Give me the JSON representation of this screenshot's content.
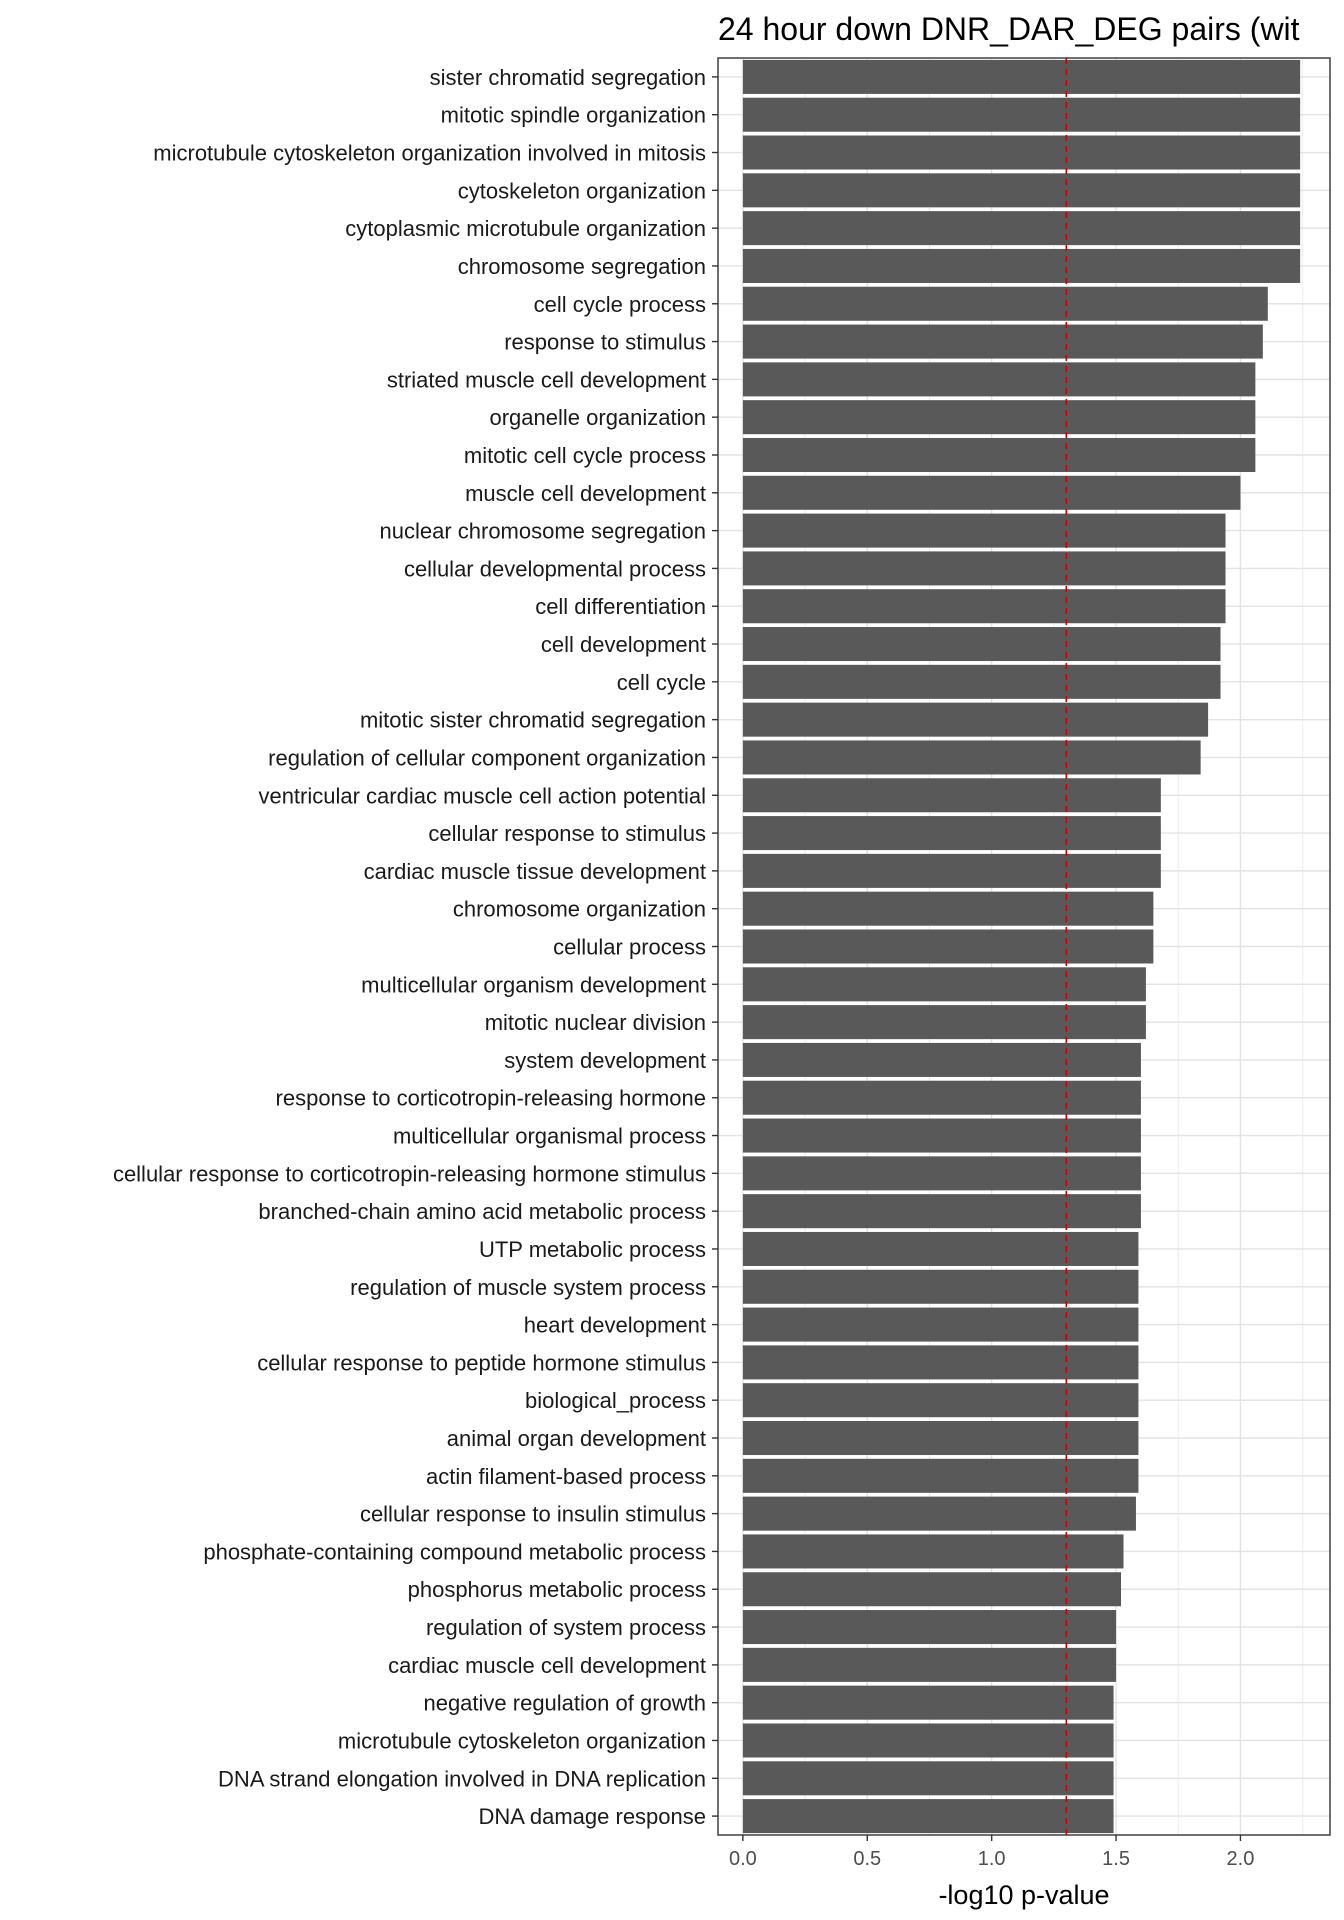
{
  "chart_data": {
    "type": "bar",
    "orientation": "horizontal",
    "title": "24 hour down DNR_DAR_DEG pairs (wit",
    "xlabel": "-log10 p-value",
    "ylabel": "",
    "xlim": [
      -0.1,
      2.36
    ],
    "xticks": [
      0.0,
      0.5,
      1.0,
      1.5,
      2.0
    ],
    "xtick_labels": [
      "0.0",
      "0.5",
      "1.0",
      "1.5",
      "2.0"
    ],
    "reference_line": {
      "x": 1.3,
      "color": "#cc0000",
      "style": "dashed"
    },
    "grid": true,
    "bar_color": "#595959",
    "categories": [
      "sister chromatid segregation",
      "mitotic spindle organization",
      "microtubule cytoskeleton organization involved in mitosis",
      "cytoskeleton organization",
      "cytoplasmic microtubule organization",
      "chromosome segregation",
      "cell cycle process",
      "response to stimulus",
      "striated muscle cell development",
      "organelle organization",
      "mitotic cell cycle process",
      "muscle cell development",
      "nuclear chromosome segregation",
      "cellular developmental process",
      "cell differentiation",
      "cell development",
      "cell cycle",
      "mitotic sister chromatid segregation",
      "regulation of cellular component organization",
      "ventricular cardiac muscle cell action potential",
      "cellular response to stimulus",
      "cardiac muscle tissue development",
      "chromosome organization",
      "cellular process",
      "multicellular organism development",
      "mitotic nuclear division",
      "system development",
      "response to corticotropin-releasing hormone",
      "multicellular organismal process",
      "cellular response to corticotropin-releasing hormone stimulus",
      "branched-chain amino acid metabolic process",
      "UTP metabolic process",
      "regulation of muscle system process",
      "heart development",
      "cellular response to peptide hormone stimulus",
      "biological_process",
      "animal organ development",
      "actin filament-based process",
      "cellular response to insulin stimulus",
      "phosphate-containing compound metabolic process",
      "phosphorus metabolic process",
      "regulation of system process",
      "cardiac muscle cell development",
      "negative regulation of growth",
      "microtubule cytoskeleton organization",
      "DNA strand elongation involved in DNA replication",
      "DNA damage response"
    ],
    "values": [
      2.24,
      2.24,
      2.24,
      2.24,
      2.24,
      2.24,
      2.11,
      2.09,
      2.06,
      2.06,
      2.06,
      2.0,
      1.94,
      1.94,
      1.94,
      1.92,
      1.92,
      1.87,
      1.84,
      1.68,
      1.68,
      1.68,
      1.65,
      1.65,
      1.62,
      1.62,
      1.6,
      1.6,
      1.6,
      1.6,
      1.6,
      1.59,
      1.59,
      1.59,
      1.59,
      1.59,
      1.59,
      1.59,
      1.58,
      1.53,
      1.52,
      1.5,
      1.5,
      1.49,
      1.49,
      1.49,
      1.49
    ]
  }
}
